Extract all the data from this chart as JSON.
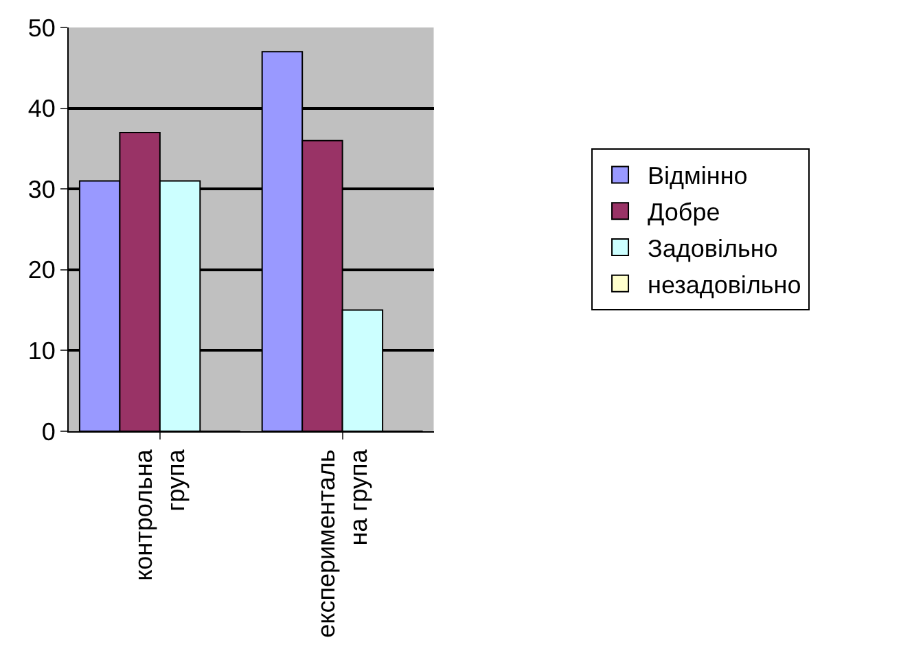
{
  "chart_data": {
    "type": "bar",
    "categories": [
      "контрольна група",
      "експериментальна група"
    ],
    "series": [
      {
        "name": "Відмінно",
        "color": "#9999ff",
        "values": [
          31,
          47
        ]
      },
      {
        "name": "Добре",
        "color": "#993366",
        "values": [
          37,
          36
        ]
      },
      {
        "name": "Задовільно",
        "color": "#ccffff",
        "values": [
          31,
          15
        ]
      },
      {
        "name": "незадовільно",
        "color": "#ffffcc",
        "values": [
          0,
          0
        ]
      }
    ],
    "ylim": [
      0,
      50
    ],
    "yticks": [
      0,
      10,
      20,
      30,
      40,
      50
    ],
    "grid": "y",
    "legend": "right"
  }
}
